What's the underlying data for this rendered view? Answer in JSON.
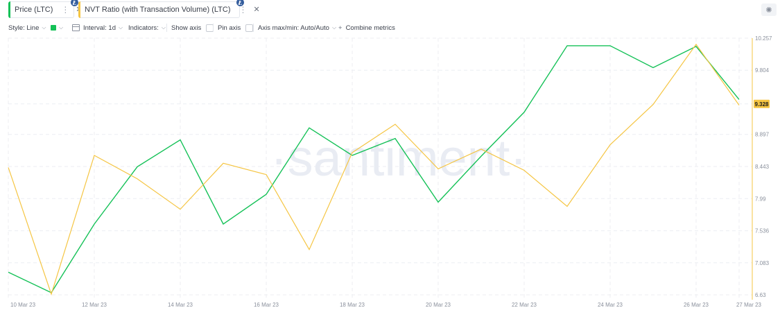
{
  "tabs": [
    {
      "label": "Price (LTC)",
      "color": "#14c157",
      "dots": "⋮",
      "close": "✕",
      "coin": "Ł"
    },
    {
      "label": "NVT Ratio (with Transaction Volume) (LTC)",
      "color": "#f5c542",
      "dots": "⋮",
      "close": "✕",
      "coin": "Ł"
    }
  ],
  "toolbar": {
    "style": "Style: Line",
    "interval": "Interval: 1d",
    "indicators": "Indicators:",
    "show_axis": "Show axis",
    "pin_axis": "Pin axis",
    "axis_maxmin": "Axis max/min: Auto/Auto",
    "combine_plus": "+",
    "combine": "Combine metrics"
  },
  "settings_icon": "gear-icon",
  "watermark": "·santiment·",
  "chart_data": {
    "type": "line",
    "x": [
      "10 Mar 23",
      "11 Mar 23",
      "12 Mar 23",
      "13 Mar 23",
      "14 Mar 23",
      "15 Mar 23",
      "16 Mar 23",
      "17 Mar 23",
      "18 Mar 23",
      "19 Mar 23",
      "20 Mar 23",
      "21 Mar 23",
      "22 Mar 23",
      "23 Mar 23",
      "24 Mar 23",
      "25 Mar 23",
      "26 Mar 23",
      "27 Mar 23"
    ],
    "x_tick_labels": [
      "10 Mar 23",
      "12 Mar 23",
      "14 Mar 23",
      "16 Mar 23",
      "18 Mar 23",
      "20 Mar 23",
      "22 Mar 23",
      "24 Mar 23",
      "26 Mar 23",
      "27 Mar 23"
    ],
    "y_tick_labels": [
      "10.257",
      "9.804",
      "9.328",
      "8.897",
      "8.443",
      "7.99",
      "7.536",
      "7.083",
      "6.63"
    ],
    "ylim": [
      6.63,
      10.257
    ],
    "current_value": "9.328",
    "grid": true,
    "series": [
      {
        "name": "Price (LTC)",
        "color": "#14c157",
        "values": [
          6.95,
          6.66,
          7.63,
          8.44,
          8.82,
          7.63,
          8.05,
          8.99,
          8.6,
          8.84,
          7.94,
          8.59,
          9.21,
          10.15,
          10.15,
          9.84,
          10.14,
          9.39
        ]
      },
      {
        "name": "NVT Ratio (with Transaction Volume) (LTC)",
        "color": "#f5c542",
        "values": [
          8.43,
          6.64,
          8.6,
          8.27,
          7.84,
          8.49,
          8.33,
          7.27,
          8.64,
          9.04,
          8.41,
          8.69,
          8.39,
          7.88,
          8.75,
          9.32,
          10.17,
          9.31
        ]
      }
    ]
  }
}
